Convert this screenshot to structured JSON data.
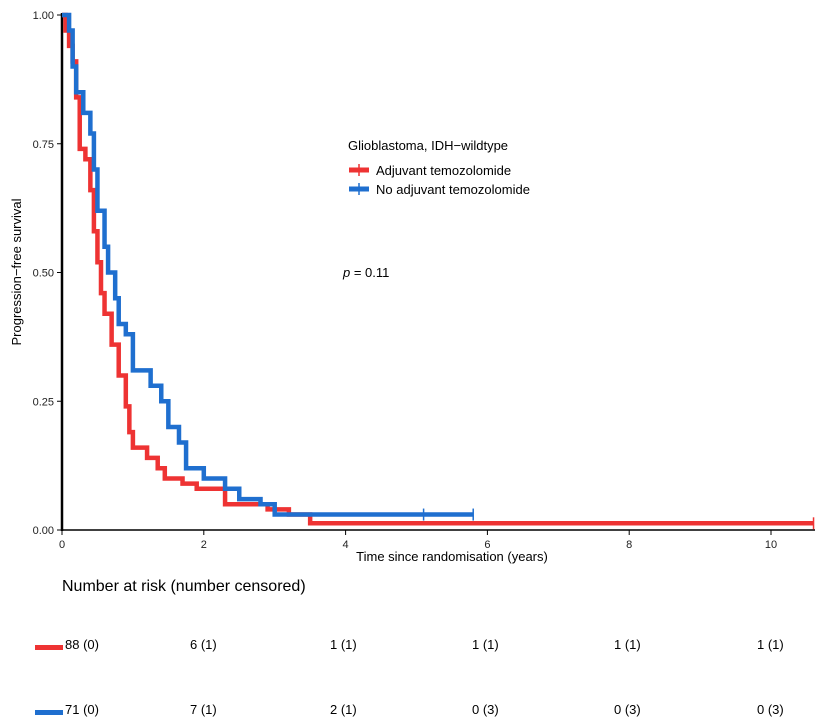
{
  "chart_data": {
    "type": "line",
    "subtype": "kaplan-meier",
    "xlabel": "Time since randomisation (years)",
    "ylabel": "Progression−free survival",
    "xlim": [
      0,
      10.6
    ],
    "ylim": [
      0,
      1
    ],
    "x_ticks": [
      "0",
      "2",
      "4",
      "6",
      "8",
      "10"
    ],
    "x_tick_values": [
      0,
      2,
      4,
      6,
      8,
      10
    ],
    "y_ticks": [
      "0.00",
      "0.25",
      "0.50",
      "0.75",
      "1.00"
    ],
    "y_tick_values": [
      0,
      0.25,
      0.5,
      0.75,
      1.0
    ],
    "grid": false,
    "legend": {
      "title": "Glioblastoma, IDH−wildtype",
      "placement": "upper-center"
    },
    "annotation": {
      "prefix": "p",
      "text": " = 0.11"
    },
    "series": [
      {
        "name": "Adjuvant temozolomide",
        "color": "#ee3333",
        "points": [
          [
            0,
            1.0
          ],
          [
            0.05,
            0.97
          ],
          [
            0.1,
            0.94
          ],
          [
            0.15,
            0.91
          ],
          [
            0.2,
            0.84
          ],
          [
            0.25,
            0.74
          ],
          [
            0.33,
            0.72
          ],
          [
            0.4,
            0.66
          ],
          [
            0.45,
            0.58
          ],
          [
            0.5,
            0.52
          ],
          [
            0.55,
            0.46
          ],
          [
            0.6,
            0.42
          ],
          [
            0.7,
            0.36
          ],
          [
            0.8,
            0.3
          ],
          [
            0.9,
            0.24
          ],
          [
            0.95,
            0.19
          ],
          [
            1.0,
            0.16
          ],
          [
            1.2,
            0.14
          ],
          [
            1.35,
            0.12
          ],
          [
            1.45,
            0.1
          ],
          [
            1.7,
            0.09
          ],
          [
            1.9,
            0.08
          ],
          [
            2.3,
            0.05
          ],
          [
            2.9,
            0.04
          ],
          [
            3.2,
            0.03
          ],
          [
            3.5,
            0.013
          ],
          [
            10.6,
            0.013
          ]
        ],
        "censor_x": [
          10.6
        ],
        "risk": [
          "88 (0)",
          "6 (1)",
          "1 (1)",
          "1 (1)",
          "1 (1)",
          "1 (1)"
        ]
      },
      {
        "name": "No adjuvant temozolomide",
        "color": "#1f6fcf",
        "points": [
          [
            0,
            1.0
          ],
          [
            0.1,
            0.97
          ],
          [
            0.15,
            0.9
          ],
          [
            0.2,
            0.85
          ],
          [
            0.3,
            0.81
          ],
          [
            0.4,
            0.77
          ],
          [
            0.45,
            0.7
          ],
          [
            0.5,
            0.62
          ],
          [
            0.6,
            0.55
          ],
          [
            0.65,
            0.5
          ],
          [
            0.75,
            0.45
          ],
          [
            0.8,
            0.4
          ],
          [
            0.9,
            0.38
          ],
          [
            1.0,
            0.31
          ],
          [
            1.25,
            0.28
          ],
          [
            1.4,
            0.25
          ],
          [
            1.5,
            0.2
          ],
          [
            1.65,
            0.17
          ],
          [
            1.75,
            0.12
          ],
          [
            2.0,
            0.1
          ],
          [
            2.3,
            0.08
          ],
          [
            2.5,
            0.06
          ],
          [
            2.8,
            0.05
          ],
          [
            3.0,
            0.03
          ],
          [
            5.8,
            0.03
          ]
        ],
        "censor_x": [
          5.1,
          5.8
        ],
        "risk": [
          "71 (0)",
          "7 (1)",
          "2 (1)",
          "0 (3)",
          "0 (3)",
          "0 (3)"
        ]
      }
    ]
  },
  "risk_table": {
    "title": "Number at risk (number censored)"
  }
}
